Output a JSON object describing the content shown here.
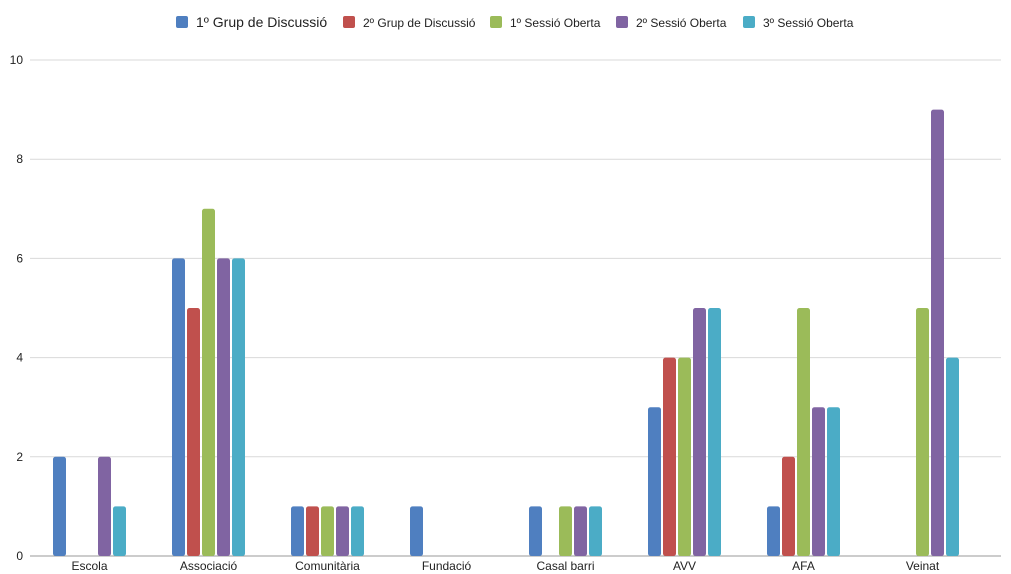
{
  "chart_data": {
    "type": "bar",
    "categories": [
      "Escola",
      "Associació",
      "Comunitària",
      "Fundació",
      "Casal barri",
      "AVV",
      "AFA",
      "Veinat"
    ],
    "series": [
      {
        "name": "1º Grup de Discussió",
        "color": "#4f7fc0",
        "values": [
          2,
          6,
          1,
          1,
          1,
          3,
          1,
          0
        ]
      },
      {
        "name": "2º Grup de Discussió",
        "color": "#c0504d",
        "values": [
          0,
          5,
          1,
          0,
          0,
          4,
          2,
          0
        ]
      },
      {
        "name": "1º Sessió Oberta",
        "color": "#9bbb59",
        "values": [
          0,
          7,
          1,
          0,
          1,
          4,
          5,
          5
        ]
      },
      {
        "name": "2º Sessió Oberta",
        "color": "#8064a2",
        "values": [
          2,
          6,
          1,
          0,
          1,
          5,
          3,
          9
        ]
      },
      {
        "name": "3º Sessió Oberta",
        "color": "#4bacc6",
        "values": [
          1,
          6,
          1,
          0,
          1,
          5,
          3,
          4
        ]
      }
    ],
    "ylim": [
      0,
      10
    ],
    "yticks": [
      0,
      2,
      4,
      6,
      8,
      10
    ],
    "grid": true,
    "legend_position": "top-center"
  }
}
